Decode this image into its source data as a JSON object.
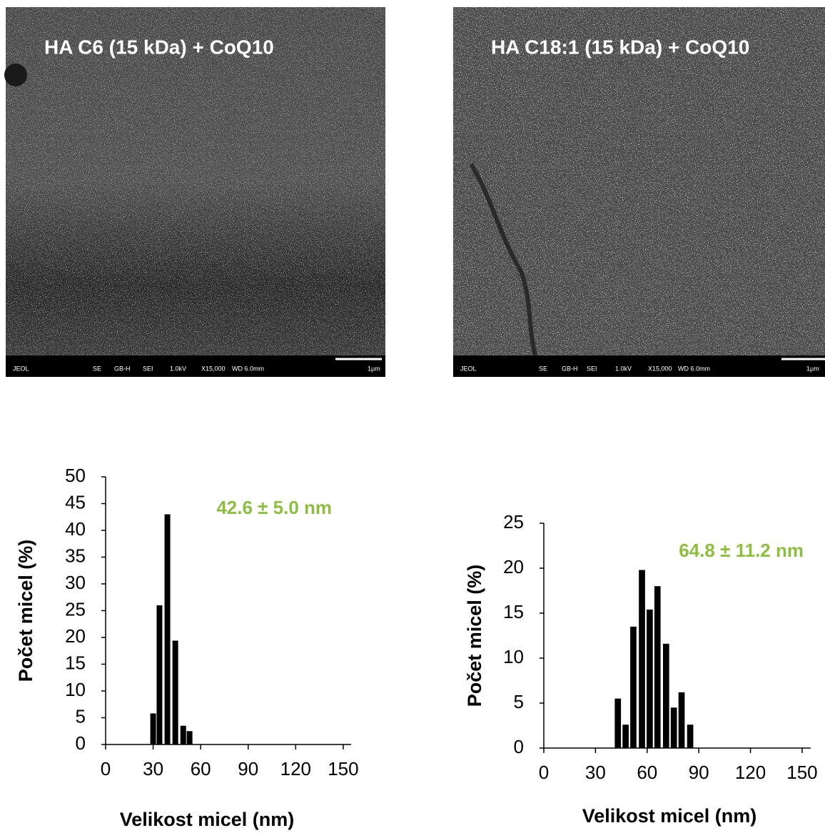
{
  "images": [
    {
      "title": "HA C6 (15 kDa) + CoQ10",
      "info": [
        "JEOL",
        "SE",
        "GB-H",
        "SEI",
        "1.0kV",
        "X15,000",
        "WD 6.0mm",
        "1μm"
      ]
    },
    {
      "title": "HA C18:1 (15 kDa) + CoQ10",
      "info": [
        "JEOL",
        "SE",
        "GB-H",
        "SEI",
        "1.0kV",
        "X15,000",
        "WD 6.0mm",
        "1μm"
      ]
    }
  ],
  "chart_data": [
    {
      "type": "bar",
      "annotation": "42.6 ± 5.0 nm",
      "xlabel": "Velikost micel (nm)",
      "ylabel": "Počet micel (%)",
      "x": [
        30,
        34,
        39,
        44,
        49,
        53
      ],
      "values": [
        5.8,
        26,
        43,
        19.4,
        3.5,
        2.5
      ],
      "color": "#000000",
      "xlim": [
        0,
        155
      ],
      "xticks": [
        0,
        30,
        60,
        90,
        120,
        150
      ],
      "ylim": [
        0,
        50
      ],
      "yticks": [
        0,
        5,
        10,
        15,
        20,
        25,
        30,
        35,
        40,
        45,
        50
      ]
    },
    {
      "type": "bar",
      "annotation": "64.8 ± 11.2 nm",
      "xlabel": "Velikost micel (nm)",
      "ylabel": "Počet micel (%)",
      "x": [
        43,
        47.5,
        52,
        57,
        61.5,
        66,
        71,
        75.5,
        80,
        85
      ],
      "values": [
        5.5,
        2.6,
        13.5,
        19.8,
        15.4,
        18,
        11.6,
        4.5,
        6.2,
        2.6
      ],
      "color": "#000000",
      "xlim": [
        0,
        155
      ],
      "xticks": [
        0,
        30,
        60,
        90,
        120,
        150
      ],
      "ylim": [
        0,
        25
      ],
      "yticks": [
        0,
        5,
        10,
        15,
        20,
        25
      ]
    }
  ]
}
